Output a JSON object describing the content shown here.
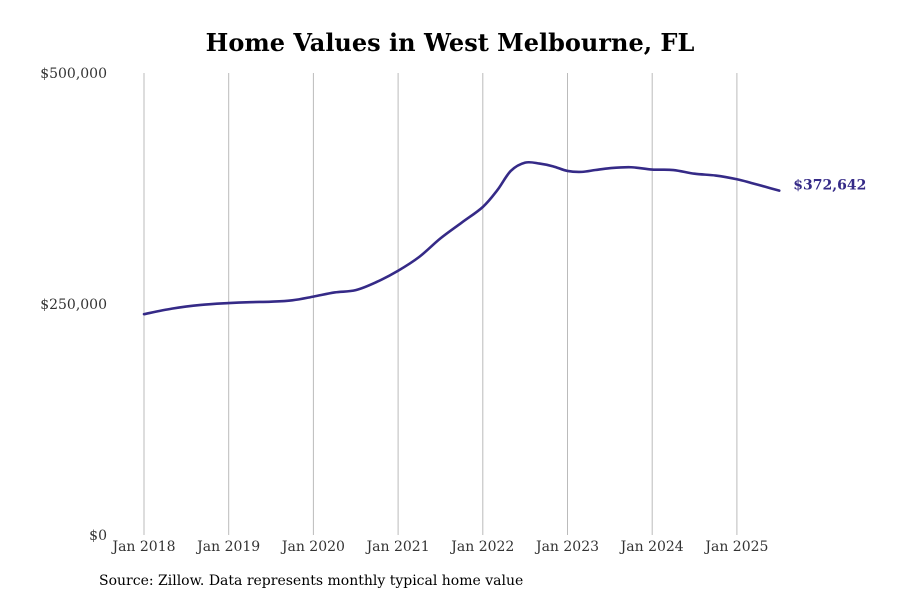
{
  "chart_data": {
    "type": "line",
    "title": "Home Values in West Melbourne, FL",
    "xlabel": "",
    "ylabel": "",
    "ylim": [
      0,
      500000
    ],
    "y_ticks": [
      {
        "value": 0,
        "label": "$0"
      },
      {
        "value": 250000,
        "label": "$250,000"
      },
      {
        "value": 500000,
        "label": "$500,000"
      }
    ],
    "x_ticks": [
      {
        "value": 2018.0,
        "label": "Jan 2018"
      },
      {
        "value": 2019.0,
        "label": "Jan 2019"
      },
      {
        "value": 2020.0,
        "label": "Jan 2020"
      },
      {
        "value": 2021.0,
        "label": "Jan 2021"
      },
      {
        "value": 2022.0,
        "label": "Jan 2022"
      },
      {
        "value": 2023.0,
        "label": "Jan 2023"
      },
      {
        "value": 2024.0,
        "label": "Jan 2024"
      },
      {
        "value": 2025.0,
        "label": "Jan 2025"
      }
    ],
    "xlim": [
      2018.0,
      2025.5
    ],
    "grid": "vertical",
    "line_color": "#352a87",
    "series": [
      {
        "x": [
          2018.0,
          2018.33,
          2018.67,
          2019.0,
          2019.25,
          2019.5,
          2019.75,
          2020.0,
          2020.25,
          2020.5,
          2020.75,
          2021.0,
          2021.25,
          2021.5,
          2021.75,
          2022.0,
          2022.17,
          2022.33,
          2022.5,
          2022.67,
          2022.83,
          2023.0,
          2023.17,
          2023.33,
          2023.5,
          2023.75,
          2024.0,
          2024.25,
          2024.5,
          2024.75,
          2025.0,
          2025.17,
          2025.33,
          2025.5
        ],
        "y": [
          239000,
          245000,
          249000,
          251000,
          252000,
          252500,
          254000,
          258000,
          262500,
          265000,
          274000,
          286000,
          301000,
          321000,
          338000,
          355000,
          373000,
          394000,
          403000,
          402000,
          399000,
          394000,
          393000,
          395000,
          397000,
          398000,
          395500,
          395000,
          391000,
          389000,
          385000,
          381000,
          377000,
          372642
        ],
        "end_label": "$372,642"
      }
    ]
  },
  "source": "Source: Zillow. Data represents monthly typical home value"
}
